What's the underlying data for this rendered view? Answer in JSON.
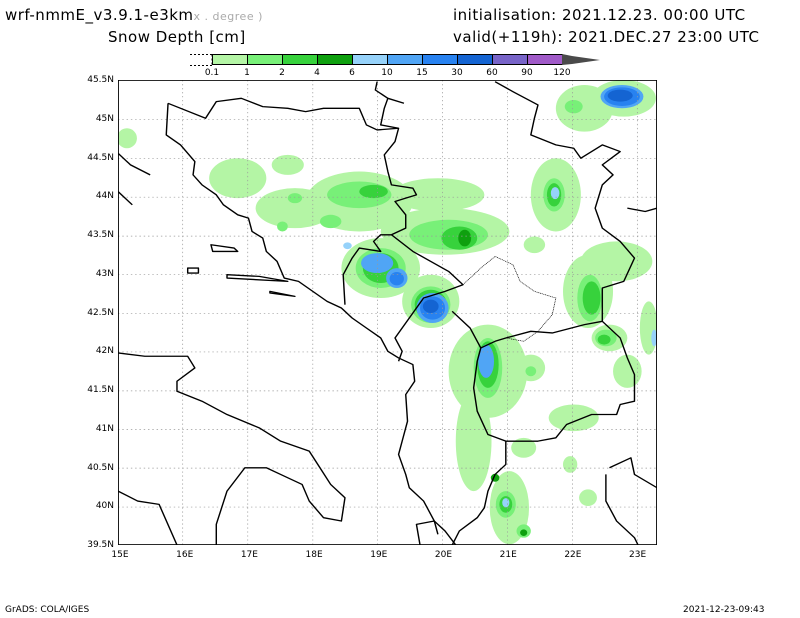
{
  "header": {
    "model": "wrf-nmmE_v3.9.1-e3km",
    "unit_note": "x . degree )",
    "variable": "Snow Depth [cm]",
    "init": "initialisation: 2021.12.23.  00:00 UTC",
    "valid": "valid(+119h): 2021.DEC.27 23:00 UTC"
  },
  "colorbar": {
    "labels": [
      "0.1",
      "1",
      "2",
      "4",
      "6",
      "10",
      "15",
      "30",
      "60",
      "90",
      "120"
    ],
    "colors": [
      "#b4f5a5",
      "#78f078",
      "#37d23c",
      "#0fa00f",
      "#96d2fa",
      "#50a5f5",
      "#2882f0",
      "#1464d2",
      "#7864c8",
      "#a05ac8",
      "#4a4a4a"
    ]
  },
  "axes": {
    "lat_labels": [
      "45.5N",
      "45N",
      "44.5N",
      "44N",
      "43.5N",
      "43N",
      "42.5N",
      "42N",
      "41.5N",
      "41N",
      "40.5N",
      "40N",
      "39.5N"
    ],
    "lon_labels": [
      "15E",
      "16E",
      "17E",
      "18E",
      "19E",
      "20E",
      "21E",
      "22E",
      "23E"
    ]
  },
  "footer": {
    "left": "GrADS: COLA/IGES",
    "right": "2021-12-23-09:43"
  }
}
